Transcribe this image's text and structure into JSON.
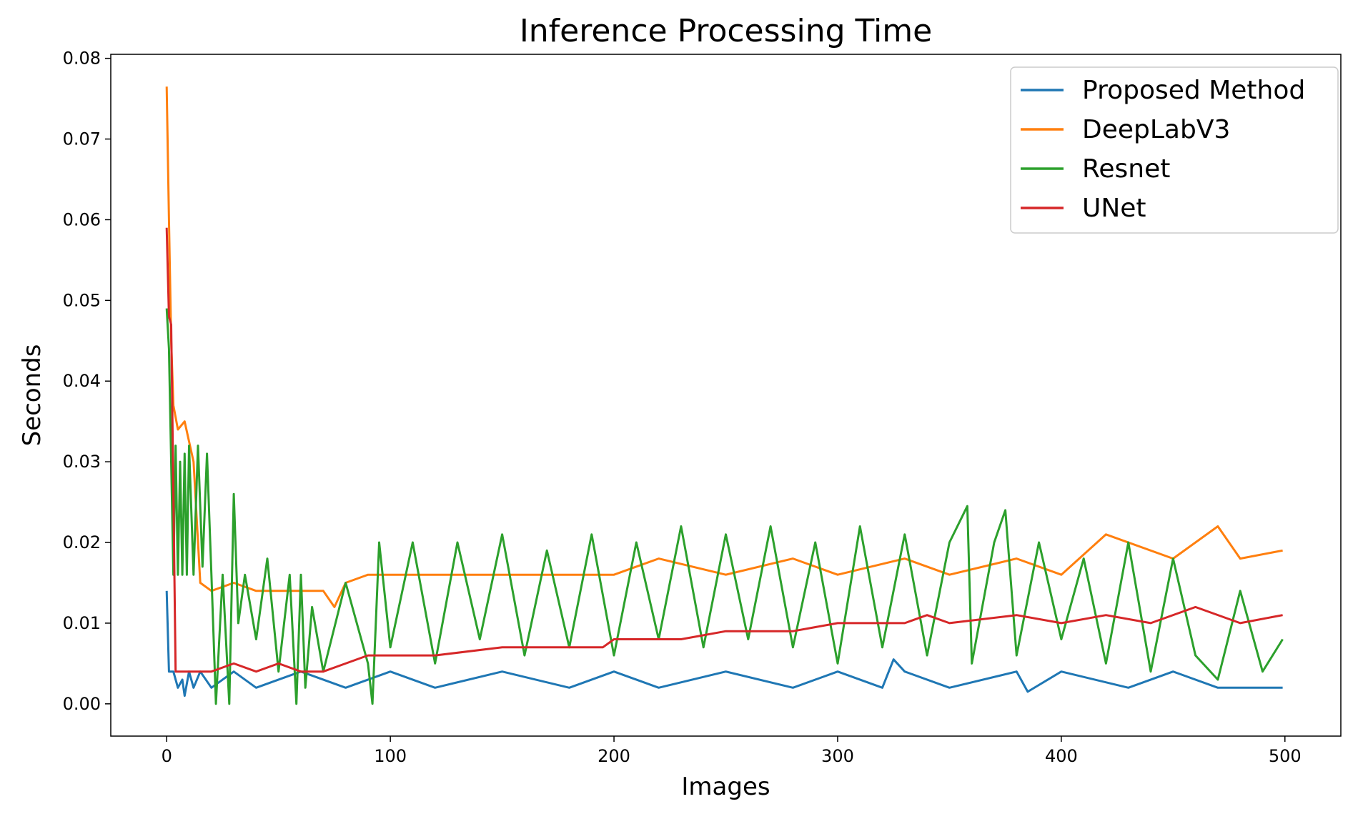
{
  "chart_data": {
    "type": "line",
    "title": "Inference Processing Time",
    "xlabel": "Images",
    "ylabel": "Seconds",
    "xlim": [
      -25,
      525
    ],
    "ylim": [
      -0.004,
      0.0805
    ],
    "xticks": [
      0,
      100,
      200,
      300,
      400,
      500
    ],
    "xtick_labels": [
      "0",
      "100",
      "200",
      "300",
      "400",
      "500"
    ],
    "yticks": [
      0.0,
      0.01,
      0.02,
      0.03,
      0.04,
      0.05,
      0.06,
      0.07,
      0.08
    ],
    "ytick_labels": [
      "0.00",
      "0.01",
      "0.02",
      "0.03",
      "0.04",
      "0.05",
      "0.06",
      "0.07",
      "0.08"
    ],
    "grid": false,
    "legend_position": "top-right",
    "series": [
      {
        "name": "Proposed Method",
        "color": "#1f77b4",
        "x": [
          0,
          1,
          2,
          3,
          5,
          7,
          8,
          10,
          12,
          15,
          20,
          30,
          40,
          60,
          80,
          100,
          120,
          150,
          180,
          200,
          220,
          250,
          280,
          300,
          320,
          325,
          330,
          350,
          380,
          385,
          400,
          430,
          450,
          470,
          499
        ],
        "y": [
          0.014,
          0.004,
          0.004,
          0.004,
          0.002,
          0.003,
          0.001,
          0.004,
          0.002,
          0.004,
          0.002,
          0.004,
          0.002,
          0.004,
          0.002,
          0.004,
          0.002,
          0.004,
          0.002,
          0.004,
          0.002,
          0.004,
          0.002,
          0.004,
          0.002,
          0.0055,
          0.004,
          0.002,
          0.004,
          0.0015,
          0.004,
          0.002,
          0.004,
          0.002,
          0.002
        ]
      },
      {
        "name": "DeepLabV3",
        "color": "#ff7f0e",
        "x": [
          0,
          1,
          2,
          3,
          5,
          8,
          12,
          15,
          20,
          30,
          40,
          50,
          60,
          70,
          75,
          80,
          90,
          100,
          120,
          150,
          180,
          200,
          220,
          250,
          280,
          300,
          330,
          350,
          380,
          400,
          420,
          450,
          470,
          480,
          499
        ],
        "y": [
          0.0765,
          0.06,
          0.045,
          0.037,
          0.034,
          0.035,
          0.03,
          0.015,
          0.014,
          0.015,
          0.014,
          0.014,
          0.014,
          0.014,
          0.012,
          0.015,
          0.016,
          0.016,
          0.016,
          0.016,
          0.016,
          0.016,
          0.018,
          0.016,
          0.018,
          0.016,
          0.018,
          0.016,
          0.018,
          0.016,
          0.021,
          0.018,
          0.022,
          0.018,
          0.019
        ]
      },
      {
        "name": "Resnet",
        "color": "#2ca02c",
        "x": [
          0,
          1,
          2,
          3,
          4,
          5,
          6,
          7,
          8,
          9,
          10,
          12,
          14,
          16,
          18,
          20,
          22,
          25,
          28,
          30,
          32,
          35,
          40,
          45,
          50,
          55,
          58,
          60,
          62,
          65,
          70,
          80,
          90,
          92,
          95,
          100,
          110,
          120,
          130,
          140,
          150,
          160,
          170,
          180,
          190,
          200,
          210,
          220,
          230,
          240,
          250,
          260,
          270,
          280,
          290,
          300,
          310,
          320,
          330,
          340,
          350,
          358,
          360,
          370,
          375,
          380,
          390,
          400,
          410,
          420,
          430,
          440,
          450,
          460,
          470,
          480,
          490,
          499
        ],
        "y": [
          0.049,
          0.044,
          0.03,
          0.016,
          0.032,
          0.016,
          0.03,
          0.016,
          0.031,
          0.016,
          0.032,
          0.016,
          0.032,
          0.017,
          0.031,
          0.016,
          0.0,
          0.016,
          0.0,
          0.026,
          0.01,
          0.016,
          0.008,
          0.018,
          0.004,
          0.016,
          0.0,
          0.016,
          0.002,
          0.012,
          0.004,
          0.015,
          0.005,
          0.0,
          0.02,
          0.007,
          0.02,
          0.005,
          0.02,
          0.008,
          0.021,
          0.006,
          0.019,
          0.007,
          0.021,
          0.006,
          0.02,
          0.008,
          0.022,
          0.007,
          0.021,
          0.008,
          0.022,
          0.007,
          0.02,
          0.005,
          0.022,
          0.007,
          0.021,
          0.006,
          0.02,
          0.0245,
          0.005,
          0.02,
          0.024,
          0.006,
          0.02,
          0.008,
          0.018,
          0.005,
          0.02,
          0.004,
          0.018,
          0.006,
          0.003,
          0.014,
          0.004,
          0.008
        ]
      },
      {
        "name": "UNet",
        "color": "#d62728",
        "x": [
          0,
          1,
          2,
          3,
          4,
          5,
          10,
          20,
          30,
          40,
          50,
          60,
          70,
          80,
          90,
          100,
          120,
          150,
          170,
          180,
          195,
          200,
          220,
          230,
          250,
          260,
          280,
          300,
          310,
          330,
          340,
          350,
          380,
          400,
          420,
          440,
          460,
          480,
          499
        ],
        "y": [
          0.059,
          0.048,
          0.047,
          0.026,
          0.004,
          0.004,
          0.004,
          0.004,
          0.005,
          0.004,
          0.005,
          0.004,
          0.004,
          0.005,
          0.006,
          0.006,
          0.006,
          0.007,
          0.007,
          0.007,
          0.007,
          0.008,
          0.008,
          0.008,
          0.009,
          0.009,
          0.009,
          0.01,
          0.01,
          0.01,
          0.011,
          0.01,
          0.011,
          0.01,
          0.011,
          0.01,
          0.012,
          0.01,
          0.011
        ]
      }
    ]
  }
}
